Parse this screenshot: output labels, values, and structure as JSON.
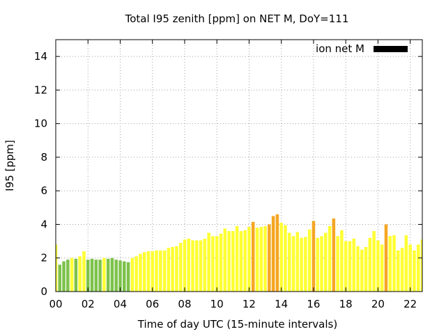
{
  "chart_data": {
    "type": "bar",
    "title": "Total I95 zenith [ppm] on NET M, DoY=111",
    "xlabel": "Time of day UTC (15-minute intervals)",
    "ylabel": "I95 [ppm]",
    "xlim": [
      0,
      22.75
    ],
    "ylim": [
      0,
      15
    ],
    "x_ticks": [
      "00",
      "02",
      "04",
      "06",
      "08",
      "10",
      "12",
      "14",
      "16",
      "18",
      "20",
      "22"
    ],
    "y_ticks": [
      "0",
      "2",
      "4",
      "6",
      "8",
      "10",
      "12",
      "14"
    ],
    "grid": true,
    "legend": {
      "position": "top-right",
      "label": "ion net M",
      "color": "#000000"
    },
    "bar_colors": {
      "green": "#7dc24b",
      "yellow": "#ffff33",
      "orange": "#f5a623"
    },
    "series": [
      {
        "name": "ion net M",
        "x_hours": [
          0,
          0.25,
          0.5,
          0.75,
          1,
          1.25,
          1.5,
          1.75,
          2,
          2.25,
          2.5,
          2.75,
          3,
          3.25,
          3.5,
          3.75,
          4,
          4.25,
          4.5,
          4.75,
          5,
          5.25,
          5.5,
          5.75,
          6,
          6.25,
          6.5,
          6.75,
          7,
          7.25,
          7.5,
          7.75,
          8,
          8.25,
          8.5,
          8.75,
          9,
          9.25,
          9.5,
          9.75,
          10,
          10.25,
          10.5,
          10.75,
          11,
          11.25,
          11.5,
          11.75,
          12,
          12.25,
          12.5,
          12.75,
          13,
          13.25,
          13.5,
          13.75,
          14,
          14.25,
          14.5,
          14.75,
          15,
          15.25,
          15.5,
          15.75,
          16,
          16.25,
          16.5,
          16.75,
          17,
          17.25,
          17.5,
          17.75,
          18,
          18.25,
          18.5,
          18.75,
          19,
          19.25,
          19.5,
          19.75,
          20,
          20.25,
          20.5,
          20.75,
          21,
          21.25,
          21.5,
          21.75,
          22,
          22.25,
          22.5,
          22.75
        ],
        "values": [
          2.8,
          1.6,
          1.8,
          1.9,
          2.0,
          1.95,
          2.1,
          2.4,
          1.9,
          1.95,
          1.9,
          1.9,
          2.0,
          1.95,
          2.0,
          1.9,
          1.85,
          1.8,
          1.75,
          2.0,
          2.1,
          2.25,
          2.35,
          2.4,
          2.4,
          2.45,
          2.45,
          2.45,
          2.6,
          2.65,
          2.7,
          2.9,
          3.1,
          3.15,
          3.05,
          3.05,
          3.05,
          3.15,
          3.5,
          3.3,
          3.3,
          3.45,
          3.75,
          3.6,
          3.6,
          3.9,
          3.6,
          3.65,
          3.85,
          4.15,
          3.8,
          3.85,
          3.9,
          4.0,
          4.5,
          4.6,
          4.1,
          3.95,
          3.5,
          3.3,
          3.55,
          3.2,
          3.25,
          3.7,
          4.2,
          3.2,
          3.3,
          3.5,
          3.9,
          4.35,
          3.3,
          3.65,
          3.0,
          3.0,
          3.15,
          2.7,
          2.5,
          2.65,
          3.2,
          3.6,
          3.05,
          2.8,
          4.0,
          3.3,
          3.35,
          2.45,
          2.6,
          3.35,
          2.8,
          2.45,
          2.8,
          3.1
        ],
        "colors": [
          "yellow",
          "green",
          "green",
          "green",
          "yellow",
          "green",
          "yellow",
          "yellow",
          "green",
          "green",
          "green",
          "green",
          "yellow",
          "green",
          "green",
          "green",
          "green",
          "green",
          "green",
          "yellow",
          "yellow",
          "yellow",
          "yellow",
          "yellow",
          "yellow",
          "yellow",
          "yellow",
          "yellow",
          "yellow",
          "yellow",
          "yellow",
          "yellow",
          "yellow",
          "yellow",
          "yellow",
          "yellow",
          "yellow",
          "yellow",
          "yellow",
          "yellow",
          "yellow",
          "yellow",
          "yellow",
          "yellow",
          "yellow",
          "yellow",
          "yellow",
          "yellow",
          "yellow",
          "orange",
          "yellow",
          "yellow",
          "yellow",
          "orange",
          "orange",
          "orange",
          "yellow",
          "yellow",
          "yellow",
          "yellow",
          "yellow",
          "yellow",
          "yellow",
          "yellow",
          "orange",
          "yellow",
          "yellow",
          "yellow",
          "yellow",
          "orange",
          "yellow",
          "yellow",
          "yellow",
          "yellow",
          "yellow",
          "yellow",
          "yellow",
          "yellow",
          "yellow",
          "yellow",
          "yellow",
          "yellow",
          "orange",
          "yellow",
          "yellow",
          "yellow",
          "yellow",
          "yellow",
          "yellow",
          "yellow",
          "yellow",
          "yellow"
        ]
      }
    ]
  }
}
